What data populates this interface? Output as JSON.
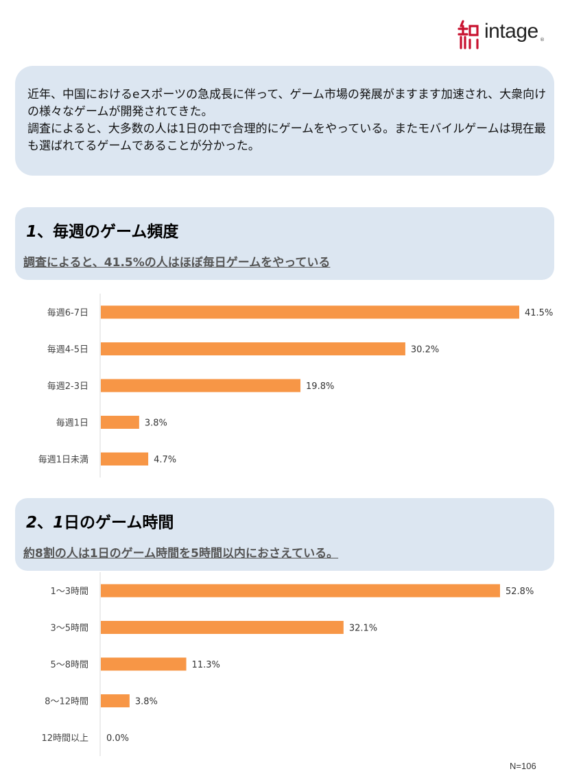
{
  "logo": {
    "text": "intage",
    "reg": "®"
  },
  "intro": {
    "para1": "近年、中国におけるeスポーツの急成長に伴って、ゲーム市場の発展がますます加速され、大衆向けの様々なゲームが開発されてきた。",
    "para2": "調査によると、大多数の人は1日の中で合理的にゲームをやっている。またモバイルゲームは現在最も選ばれてるゲームであることが分かった。"
  },
  "section1": {
    "number": "1",
    "title": "、毎週のゲーム頻度",
    "subtitle": "調査によると、41.5%の人はほぼ毎日ゲームをやっている"
  },
  "section2": {
    "number": "2",
    "title_num2": "1",
    "title": "、",
    "title_rest": "日のゲーム時間",
    "subtitle": "約8割の人は1日のゲーム時間を5時間以内におさえている。"
  },
  "footnote": "N=106",
  "colors": {
    "bar": "#f79646",
    "axis": "#d9d9d9",
    "panel": "#dce6f1",
    "logo_red": "#c8102e"
  },
  "chart_data": [
    {
      "type": "bar",
      "orientation": "horizontal",
      "categories": [
        "毎週6-7日",
        "毎週4-5日",
        "毎週2-3日",
        "毎週1日",
        "毎週1日未満"
      ],
      "values": [
        41.5,
        30.2,
        19.8,
        3.8,
        4.7
      ],
      "value_labels": [
        "41.5%",
        "30.2%",
        "19.8%",
        "3.8%",
        "4.7%"
      ],
      "xlim": [
        0,
        41.5
      ],
      "grid": false
    },
    {
      "type": "bar",
      "orientation": "horizontal",
      "categories": [
        "1～3時間",
        "3～5時間",
        "5～8時間",
        "8～12時間",
        "12時間以上"
      ],
      "values": [
        52.8,
        32.1,
        11.3,
        3.8,
        0.0
      ],
      "value_labels": [
        "52.8%",
        "32.1%",
        "11.3%",
        "3.8%",
        "0.0%"
      ],
      "xlim": [
        0,
        52.8
      ],
      "grid": false
    }
  ]
}
